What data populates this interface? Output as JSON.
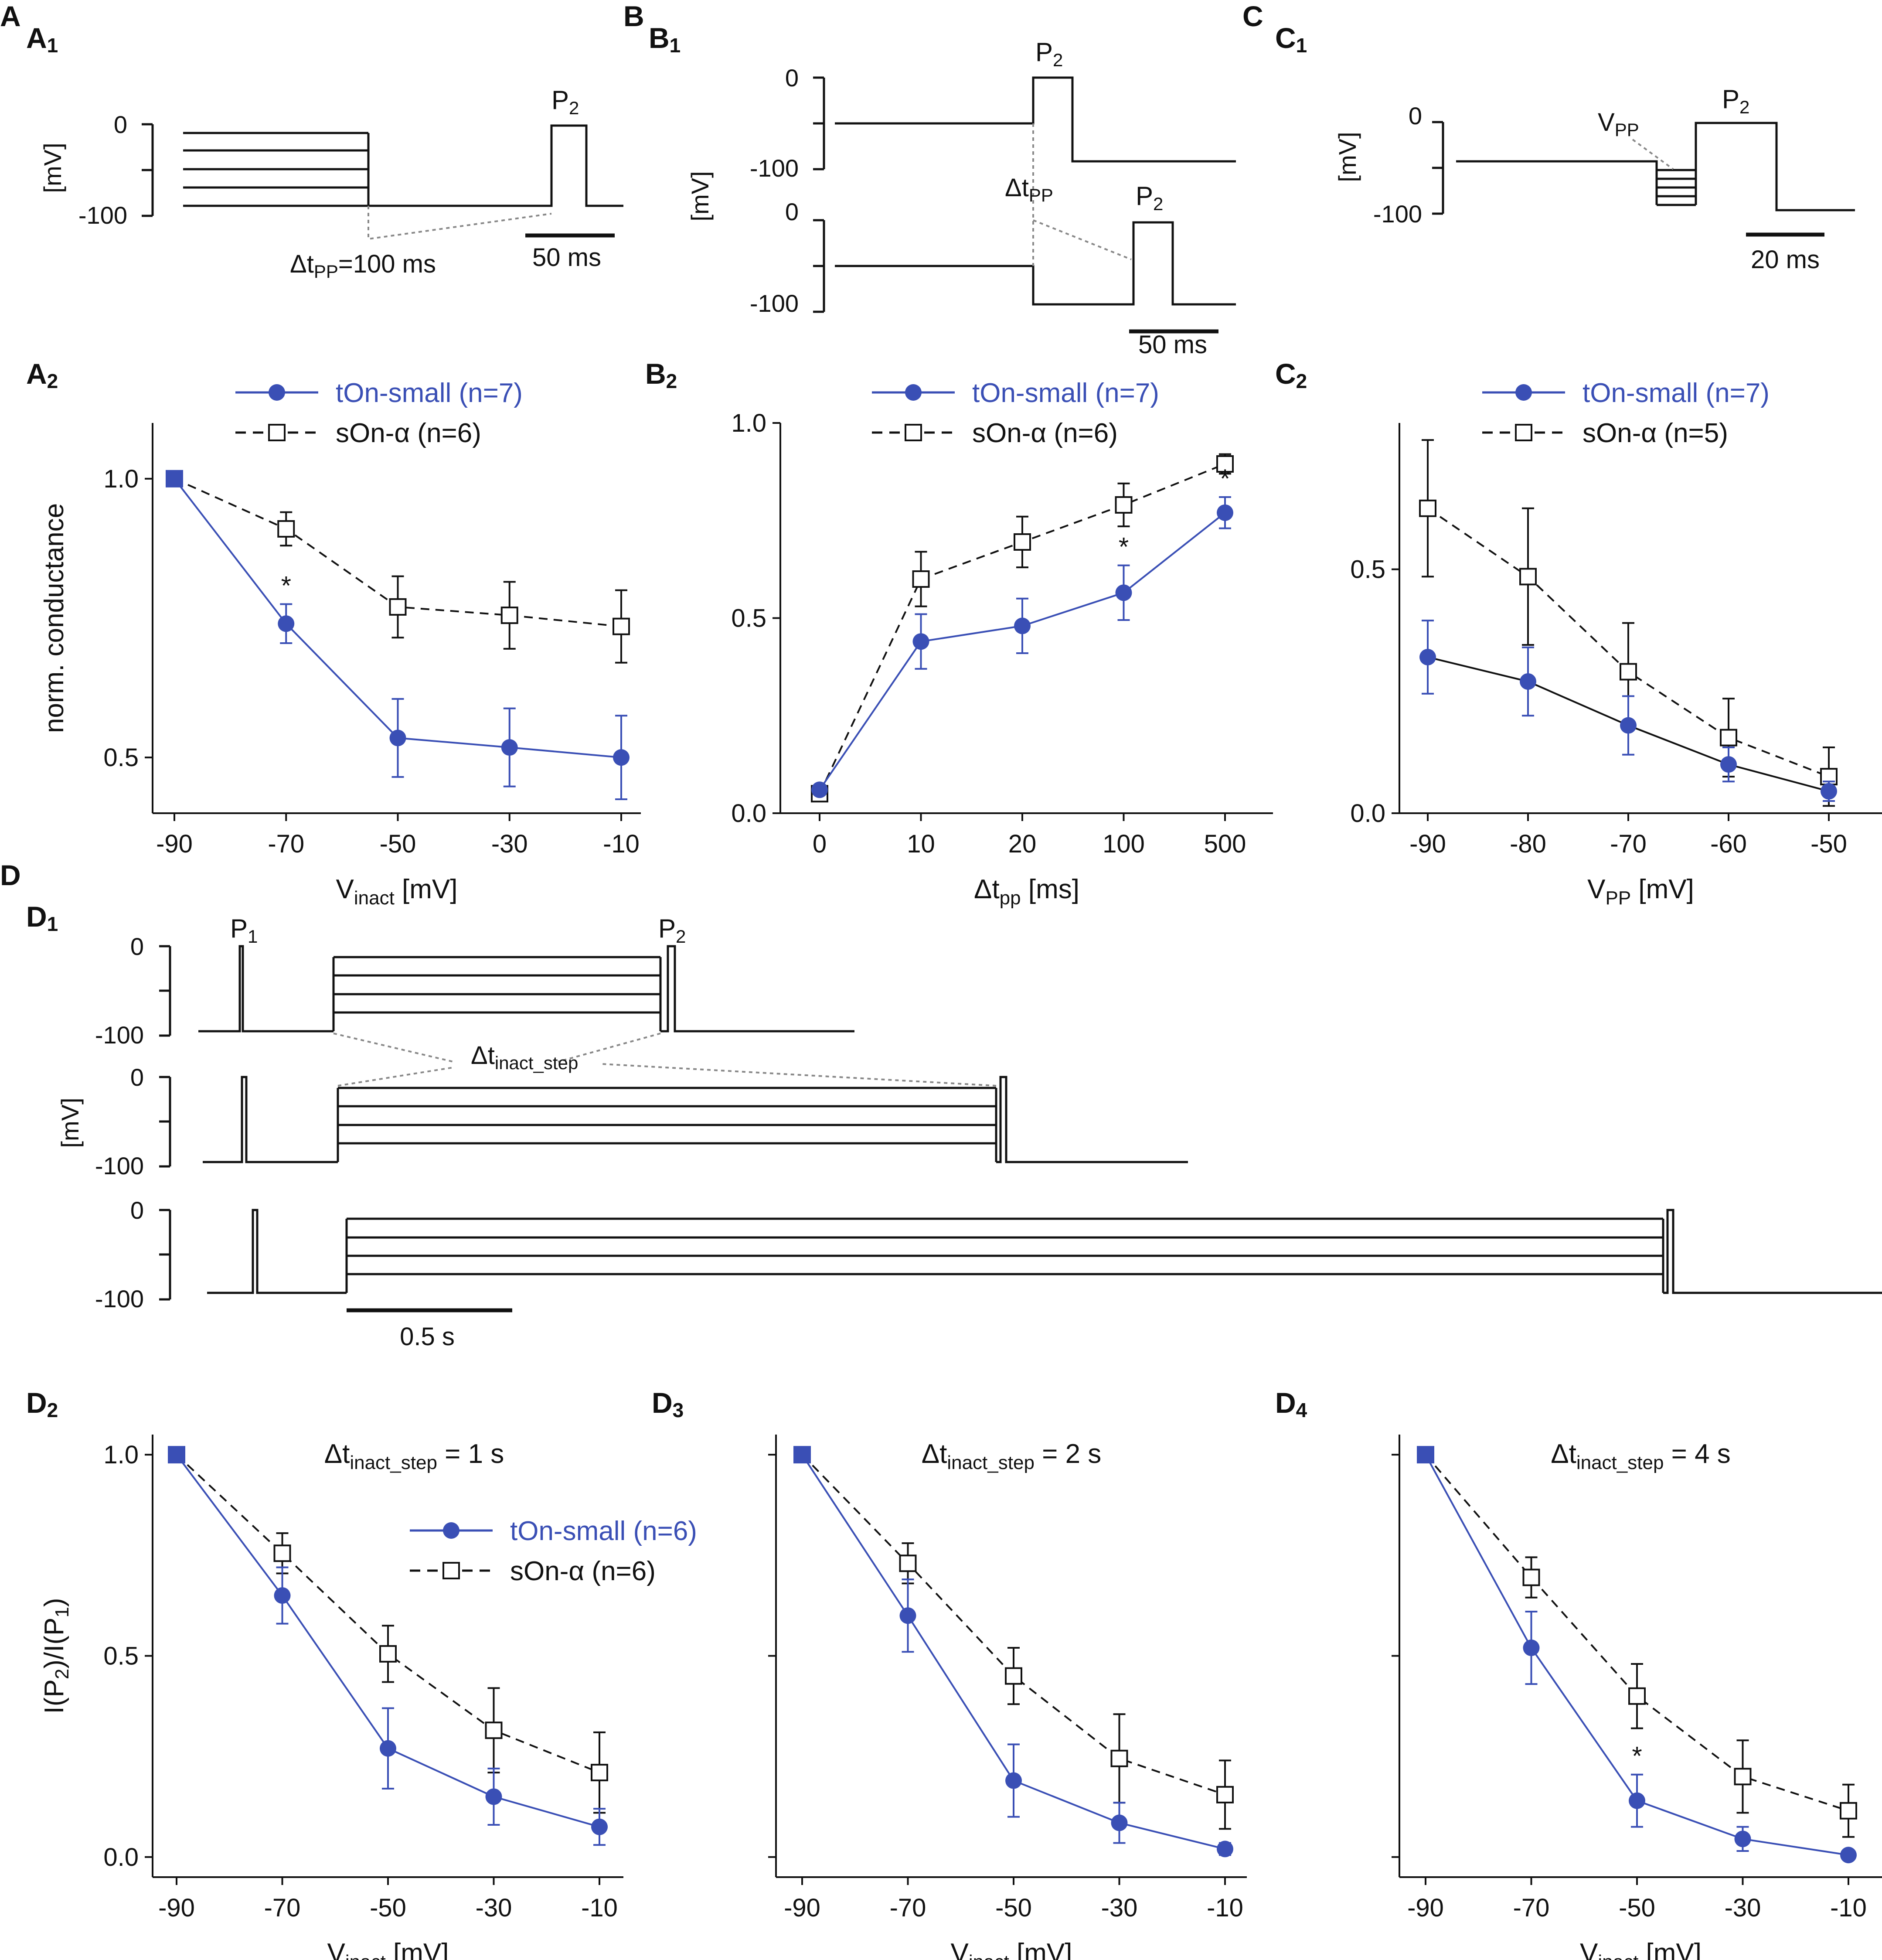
{
  "colors": {
    "blue": "#3a4fb5",
    "black": "#111111",
    "gray": "#888888"
  },
  "panels": {
    "A": "A",
    "A1": "1",
    "A2": "2",
    "B": "B",
    "B1": "1",
    "B2": "2",
    "C": "C",
    "C1": "1",
    "C2": "2",
    "D": "D",
    "D1": "1",
    "D2": "2",
    "D3": "3",
    "D4": "4"
  },
  "protocols": {
    "A": {
      "y_ticks": [
        "0",
        "-100"
      ],
      "y_unit": "[mV]",
      "pulse": "P",
      "pulse_sub": "2",
      "delta_sym": "Δt",
      "delta_sub": "PP",
      "delta_val": "=100 ms",
      "scale": "50 ms"
    },
    "B": {
      "y_ticks_top": [
        "0",
        "-100"
      ],
      "y_ticks_bottom": [
        "0",
        "-100"
      ],
      "y_unit": "[mV]",
      "pulse": "P",
      "pulse_sub": "2",
      "delta_sym": "Δt",
      "delta_sub": "PP",
      "scale": "50 ms"
    },
    "C": {
      "y_ticks": [
        "0",
        "-100"
      ],
      "y_unit": "[mV]",
      "pulse": "P",
      "pulse_sub": "2",
      "vpp": "V",
      "vpp_sub": "PP",
      "scale": "20 ms"
    },
    "D": {
      "y_ticks": [
        "0",
        "-100"
      ],
      "y_unit": "[mV]",
      "p1": "P",
      "p1_sub": "1",
      "p2": "P",
      "p2_sub": "2",
      "delta_sym": "Δt",
      "delta_sub": "inact_step",
      "scale": "0.5 s"
    }
  },
  "chart_data": [
    {
      "id": "A2",
      "type": "line",
      "ylabel": "norm. conductance",
      "xlabel": "V",
      "xlabel_sub": "inact",
      "xlabel_unit": " [mV]",
      "categories": [
        "-90",
        "-70",
        "-50",
        "-30",
        "-10"
      ],
      "ylim": [
        0.4,
        1.1
      ],
      "yticks": [
        "0.5",
        "1.0"
      ],
      "series": [
        {
          "name": "tOn-small (n=7)",
          "values": [
            1.0,
            0.74,
            0.535,
            0.518,
            0.5
          ],
          "err": [
            0,
            0.035,
            0.07,
            0.07,
            0.075
          ]
        },
        {
          "name": "sOn-α (n=6)",
          "values": [
            1.0,
            0.91,
            0.77,
            0.755,
            0.735
          ],
          "err": [
            0,
            0.03,
            0.055,
            0.06,
            0.065
          ]
        }
      ],
      "significance": [
        {
          "x": "-70",
          "label": "*"
        }
      ]
    },
    {
      "id": "B2",
      "type": "line",
      "ylabel": "",
      "xlabel": "Δt",
      "xlabel_sub": "pp",
      "xlabel_unit": " [ms]",
      "categories": [
        "0",
        "10",
        "20",
        "100",
        "500"
      ],
      "ylim": [
        0.0,
        1.0
      ],
      "yticks": [
        "0.0",
        "0.5",
        "1.0"
      ],
      "series": [
        {
          "name": "tOn-small (n=7)",
          "values": [
            0.06,
            0.44,
            0.48,
            0.565,
            0.77
          ],
          "err": [
            0.01,
            0.07,
            0.07,
            0.07,
            0.04
          ]
        },
        {
          "name": "sOn-α (n=6)",
          "values": [
            0.05,
            0.6,
            0.695,
            0.79,
            0.895
          ],
          "err": [
            0.01,
            0.07,
            0.065,
            0.055,
            0.025
          ]
        }
      ],
      "significance": [
        {
          "x": "100",
          "label": "*"
        },
        {
          "x": "500",
          "label": "*"
        }
      ]
    },
    {
      "id": "C2",
      "type": "line",
      "ylabel": "",
      "xlabel": "V",
      "xlabel_sub": "PP",
      "xlabel_unit": " [mV]",
      "categories": [
        "-90",
        "-80",
        "-70",
        "-60",
        "-50"
      ],
      "ylim": [
        0.0,
        0.8
      ],
      "yticks": [
        "0.0",
        "0.5"
      ],
      "series": [
        {
          "name": "tOn-small (n=7)",
          "values": [
            0.32,
            0.27,
            0.18,
            0.1,
            0.045
          ],
          "err": [
            0.075,
            0.07,
            0.06,
            0.035,
            0.02
          ]
        },
        {
          "name": "sOn-α (n=5)",
          "values": [
            0.625,
            0.485,
            0.29,
            0.155,
            0.075
          ],
          "err": [
            0.14,
            0.14,
            0.1,
            0.08,
            0.06
          ]
        }
      ],
      "significance": []
    },
    {
      "id": "D2",
      "type": "line",
      "title": "Δt",
      "title_sub": "inact_step",
      "title_val": " = 1 s",
      "ylabel": "I(P2)/I(P1)",
      "xlabel": "V",
      "xlabel_sub": "inact",
      "xlabel_unit": " [mV]",
      "categories": [
        "-90",
        "-70",
        "-50",
        "-30",
        "-10"
      ],
      "ylim": [
        -0.05,
        1.05
      ],
      "yticks": [
        "0.0",
        "0.5",
        "1.0"
      ],
      "series": [
        {
          "name": "tOn-small (n=6)",
          "values": [
            1.0,
            0.65,
            0.27,
            0.15,
            0.075
          ],
          "err": [
            0,
            0.07,
            0.1,
            0.07,
            0.045
          ]
        },
        {
          "name": "sOn-α (n=6)",
          "values": [
            1.0,
            0.755,
            0.505,
            0.315,
            0.21
          ],
          "err": [
            0,
            0.05,
            0.07,
            0.105,
            0.1
          ]
        }
      ],
      "significance": []
    },
    {
      "id": "D3",
      "type": "line",
      "title": "Δt",
      "title_sub": "inact_step",
      "title_val": " = 2 s",
      "ylabel": "",
      "xlabel": "V",
      "xlabel_sub": "inact",
      "xlabel_unit": " [mV]",
      "categories": [
        "-90",
        "-70",
        "-50",
        "-30",
        "-10"
      ],
      "ylim": [
        -0.05,
        1.05
      ],
      "yticks": [],
      "series": [
        {
          "name": "tOn-small (n=6)",
          "values": [
            1.0,
            0.6,
            0.19,
            0.085,
            0.02
          ],
          "err": [
            0,
            0.09,
            0.09,
            0.05,
            0.015
          ]
        },
        {
          "name": "sOn-α (n=6)",
          "values": [
            1.0,
            0.73,
            0.45,
            0.245,
            0.155
          ],
          "err": [
            0,
            0.05,
            0.07,
            0.11,
            0.085
          ]
        }
      ],
      "significance": []
    },
    {
      "id": "D4",
      "type": "line",
      "title": "Δt",
      "title_sub": "inact_step",
      "title_val": " = 4 s",
      "ylabel": "",
      "xlabel": "V",
      "xlabel_sub": "inact",
      "xlabel_unit": " [mV]",
      "categories": [
        "-90",
        "-70",
        "-50",
        "-30",
        "-10"
      ],
      "ylim": [
        -0.05,
        1.05
      ],
      "yticks": [],
      "series": [
        {
          "name": "tOn-small (n=6)",
          "values": [
            1.0,
            0.52,
            0.14,
            0.045,
            0.005
          ],
          "err": [
            0,
            0.09,
            0.065,
            0.03,
            0.01
          ]
        },
        {
          "name": "sOn-α (n=6)",
          "values": [
            1.0,
            0.695,
            0.4,
            0.2,
            0.115
          ],
          "err": [
            0,
            0.05,
            0.08,
            0.09,
            0.065
          ]
        }
      ],
      "significance": [
        {
          "x": "-50",
          "label": "*"
        }
      ]
    }
  ]
}
